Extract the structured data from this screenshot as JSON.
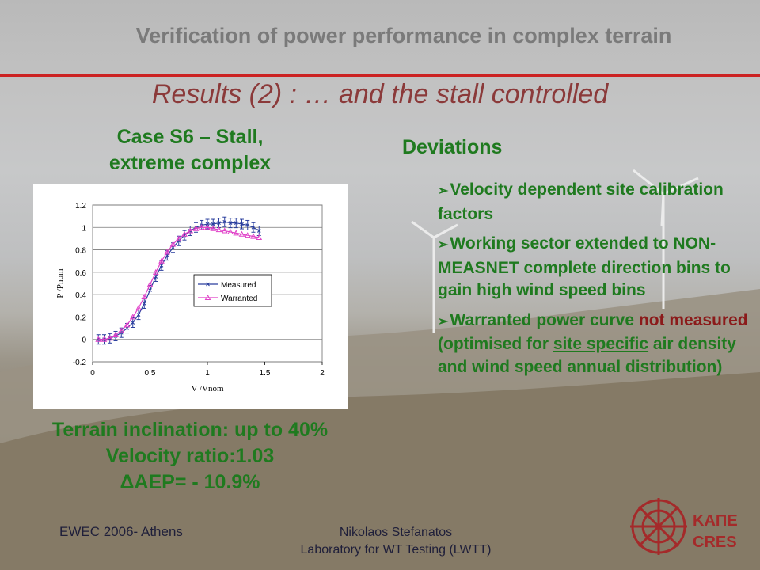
{
  "header": {
    "title": "Verification of power performance in complex terrain",
    "subtitle": "Results (2) : … and the stall controlled"
  },
  "left": {
    "case_title_line1": "Case S6 – Stall,",
    "case_title_line2": "extreme complex",
    "terrain_line": "Terrain inclination: up to 40%",
    "velocity_line": "Velocity ratio:1.03",
    "aep_line": "ΔAEP= - 10.9%"
  },
  "right": {
    "heading": "Deviations",
    "bullet1": "Velocity dependent site calibration factors",
    "bullet2": "Working sector extended to NON-MEASNET complete direction bins to gain high wind speed bins",
    "bullet3_a": "Warranted power curve ",
    "bullet3_red": "not measured",
    "bullet3_b": " (optimised for ",
    "bullet3_ul": "site specific",
    "bullet3_c": " air density and wind speed annual distribution)"
  },
  "footer": {
    "left": "EWEC 2006- Athens",
    "author": "Nikolaos Stefanatos",
    "lab": "Laboratory for WT Testing (LWTT)"
  },
  "logo": {
    "line1": "ΚΑΠΕ",
    "line2": "CRES",
    "color": "#a42a2a"
  },
  "colors": {
    "title_gray": "#7a7a7a",
    "subtitle": "#8b3a3a",
    "green": "#1f7a1f",
    "rule_red": "#cc2222"
  },
  "chart_data": {
    "type": "line",
    "xlabel": "V /Vnom",
    "ylabel": "P /Pnom",
    "xlim": [
      0,
      2
    ],
    "ylim": [
      -0.2,
      1.2
    ],
    "xticks": [
      "0",
      "0.5",
      "1",
      "1.5",
      "2"
    ],
    "yticks": [
      "-0.2",
      "0",
      "0.2",
      "0.4",
      "0.6",
      "0.8",
      "1",
      "1.2"
    ],
    "legend_position": "center-right",
    "series": [
      {
        "name": "Measured",
        "color": "#2a3f9e",
        "marker": "x-errorbar",
        "x": [
          0.05,
          0.1,
          0.15,
          0.2,
          0.25,
          0.3,
          0.35,
          0.4,
          0.45,
          0.5,
          0.55,
          0.6,
          0.65,
          0.7,
          0.75,
          0.8,
          0.85,
          0.9,
          0.95,
          1.0,
          1.05,
          1.1,
          1.15,
          1.2,
          1.25,
          1.3,
          1.35,
          1.4,
          1.45
        ],
        "y": [
          0.0,
          0.0,
          0.01,
          0.03,
          0.06,
          0.1,
          0.15,
          0.22,
          0.32,
          0.44,
          0.56,
          0.66,
          0.75,
          0.82,
          0.88,
          0.93,
          0.97,
          1.0,
          1.02,
          1.03,
          1.03,
          1.04,
          1.05,
          1.04,
          1.04,
          1.03,
          1.02,
          1.0,
          0.97
        ]
      },
      {
        "name": "Warranted",
        "color": "#e040c8",
        "marker": "triangle",
        "x": [
          0.05,
          0.1,
          0.15,
          0.2,
          0.25,
          0.3,
          0.35,
          0.4,
          0.45,
          0.5,
          0.55,
          0.6,
          0.65,
          0.7,
          0.75,
          0.8,
          0.85,
          0.9,
          0.95,
          1.0,
          1.05,
          1.1,
          1.15,
          1.2,
          1.25,
          1.3,
          1.35,
          1.4,
          1.45
        ],
        "y": [
          0.0,
          0.0,
          0.01,
          0.04,
          0.08,
          0.13,
          0.2,
          0.28,
          0.38,
          0.49,
          0.6,
          0.7,
          0.78,
          0.85,
          0.9,
          0.94,
          0.97,
          0.99,
          1.0,
          1.0,
          0.99,
          0.98,
          0.97,
          0.96,
          0.95,
          0.94,
          0.93,
          0.92,
          0.91
        ]
      }
    ]
  }
}
